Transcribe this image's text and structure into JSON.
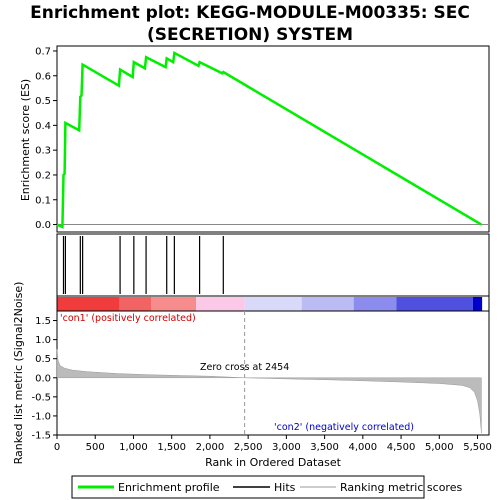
{
  "chart_data": {
    "type": "line",
    "title_lines": [
      "Enrichment plot: KEGG-MODULE-M00335: SEC",
      "(SECRETION) SYSTEM"
    ],
    "xlabel": "Rank in Ordered Dataset",
    "xlim": [
      0,
      5650
    ],
    "x_ticks": [
      0,
      500,
      1000,
      1500,
      2000,
      2500,
      3000,
      3500,
      4000,
      4500,
      5000,
      5500
    ],
    "x_tick_labels": [
      "0",
      "500",
      "1,000",
      "1,500",
      "2,000",
      "2,500",
      "3,000",
      "3,500",
      "4,000",
      "4,500",
      "5,000",
      "5,500"
    ],
    "enrichment": {
      "ylabel": "Enrichment score (ES)",
      "ylim": [
        -0.03,
        0.72
      ],
      "y_ticks": [
        0.0,
        0.1,
        0.2,
        0.3,
        0.4,
        0.5,
        0.6,
        0.7
      ],
      "y_tick_labels": [
        "0.0",
        "0.1",
        "0.2",
        "0.3",
        "0.4",
        "0.5",
        "0.6",
        "0.7"
      ],
      "series_name": "Enrichment profile",
      "color": "#00ee00",
      "points": [
        [
          0,
          0.0
        ],
        [
          70,
          -0.01
        ],
        [
          85,
          0.2
        ],
        [
          100,
          0.205
        ],
        [
          110,
          0.41
        ],
        [
          290,
          0.38
        ],
        [
          305,
          0.515
        ],
        [
          320,
          0.52
        ],
        [
          335,
          0.645
        ],
        [
          810,
          0.56
        ],
        [
          825,
          0.625
        ],
        [
          990,
          0.595
        ],
        [
          1005,
          0.655
        ],
        [
          1150,
          0.63
        ],
        [
          1165,
          0.675
        ],
        [
          1420,
          0.635
        ],
        [
          1435,
          0.67
        ],
        [
          1520,
          0.655
        ],
        [
          1535,
          0.692
        ],
        [
          1850,
          0.64
        ],
        [
          1865,
          0.655
        ],
        [
          2160,
          0.61
        ],
        [
          2175,
          0.615
        ],
        [
          5550,
          0.0
        ]
      ]
    },
    "hits": {
      "series_name": "Hits",
      "positions": [
        85,
        110,
        305,
        335,
        825,
        1005,
        1165,
        1435,
        1535,
        1865,
        2175
      ]
    },
    "rank_metric": {
      "ylabel": "Ranked list metric (Signal2Noise)",
      "series_name": "Ranking metric scores",
      "ylim": [
        -1.5,
        1.75
      ],
      "y_ticks": [
        -1.5,
        -1.0,
        -0.5,
        0.0,
        0.5,
        1.0,
        1.5
      ],
      "y_tick_labels": [
        "-1.5",
        "-1.0",
        "-0.5",
        "0.0",
        "0.5",
        "1.0",
        "1.5"
      ],
      "profile": [
        [
          0,
          0.75
        ],
        [
          15,
          0.45
        ],
        [
          40,
          0.32
        ],
        [
          100,
          0.25
        ],
        [
          200,
          0.2
        ],
        [
          400,
          0.16
        ],
        [
          800,
          0.11
        ],
        [
          1200,
          0.08
        ],
        [
          1600,
          0.06
        ],
        [
          2000,
          0.04
        ],
        [
          2454,
          0.0
        ],
        [
          3000,
          -0.03
        ],
        [
          3500,
          -0.05
        ],
        [
          4000,
          -0.08
        ],
        [
          4500,
          -0.11
        ],
        [
          5000,
          -0.15
        ],
        [
          5300,
          -0.2
        ],
        [
          5400,
          -0.26
        ],
        [
          5460,
          -0.38
        ],
        [
          5500,
          -0.6
        ],
        [
          5530,
          -0.95
        ],
        [
          5550,
          -1.45
        ]
      ],
      "zero_cross_rank": 2454,
      "zero_cross_label": "Zero cross at 2454",
      "pos_label": "'con1' (positively correlated)",
      "pos_color": "#cc0000",
      "neg_label": "'con2' (negatively correlated)",
      "neg_color": "#0000cc"
    },
    "color_bar": [
      {
        "from": 0,
        "to": 820,
        "color": "#f03c3c"
      },
      {
        "from": 820,
        "to": 1230,
        "color": "#f26464"
      },
      {
        "from": 1230,
        "to": 1820,
        "color": "#f68c8c"
      },
      {
        "from": 1820,
        "to": 2454,
        "color": "#fbc8e8"
      },
      {
        "from": 2454,
        "to": 3200,
        "color": "#d9dafa"
      },
      {
        "from": 3200,
        "to": 3880,
        "color": "#bcbcf4"
      },
      {
        "from": 3880,
        "to": 4440,
        "color": "#8c8cee"
      },
      {
        "from": 4440,
        "to": 5440,
        "color": "#5050e0"
      },
      {
        "from": 5440,
        "to": 5560,
        "color": "#0000cc"
      }
    ],
    "legend": {
      "position": "bottom",
      "items": [
        {
          "label": "Enrichment profile",
          "color": "#00ee00",
          "style": "thick"
        },
        {
          "label": "Hits",
          "color": "#000000",
          "style": "thin"
        },
        {
          "label": "Ranking metric scores",
          "color": "#bbbbbb",
          "style": "thin"
        }
      ]
    }
  }
}
